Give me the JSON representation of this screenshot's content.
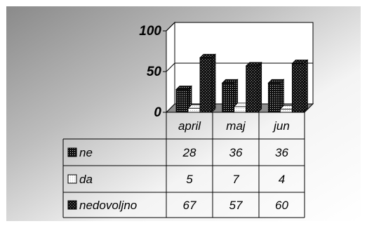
{
  "chart_data": {
    "type": "bar",
    "categories": [
      "april",
      "maj",
      "jun"
    ],
    "series": [
      {
        "name": "ne",
        "values": [
          28,
          36,
          36
        ],
        "pattern": "dotted-dark"
      },
      {
        "name": "da",
        "values": [
          5,
          7,
          4
        ],
        "pattern": "white"
      },
      {
        "name": "nedovoljno",
        "values": [
          67,
          57,
          60
        ],
        "pattern": "checkered-dark"
      }
    ],
    "ylim": [
      0,
      100
    ],
    "yticks": [
      0,
      50,
      100
    ],
    "grid": true,
    "legend": "data-table-below",
    "background": "gray-gradient",
    "colors": {
      "wall": "#ffffff",
      "dark_pattern": "#111111",
      "table_border": "#000000"
    }
  }
}
